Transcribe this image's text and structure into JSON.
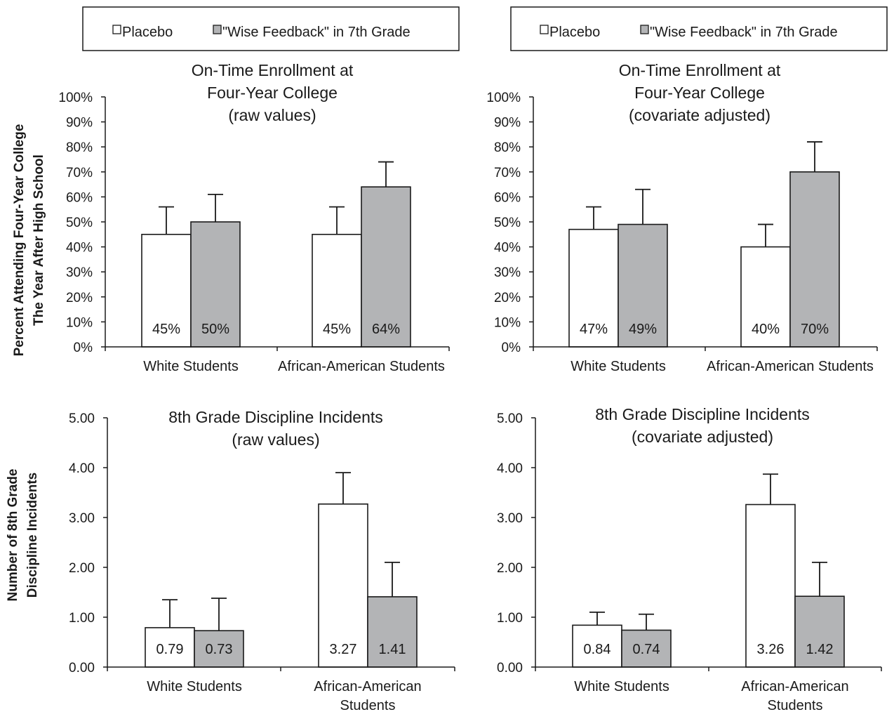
{
  "legend": {
    "placebo_label": "Placebo",
    "treatment_label": "\"Wise Feedback\" in 7th Grade"
  },
  "colors": {
    "placebo": "#ffffff",
    "treatment": "#b3b4b6",
    "ink": "#1a1a1a"
  },
  "row_labels": {
    "top_line1": "Percent Attending Four-Year College",
    "top_line2": "The Year After High School",
    "bottom_line1": "Number of 8th Grade",
    "bottom_line2": "Discipline Incidents"
  },
  "chart_data": [
    {
      "type": "bar",
      "title": [
        "On-Time Enrollment at",
        "Four-Year College",
        "(raw values)"
      ],
      "categories": [
        [
          "White Students"
        ],
        [
          "African-American Students"
        ]
      ],
      "series": [
        {
          "name": "Placebo",
          "values": [
            45,
            45
          ],
          "labels": [
            "45%",
            "45%"
          ],
          "error_upper": [
            56,
            56
          ]
        },
        {
          "name": "\"Wise Feedback\" in 7th Grade",
          "values": [
            50,
            64
          ],
          "labels": [
            "50%",
            "64%"
          ],
          "error_upper": [
            61,
            74
          ]
        }
      ],
      "ylim": [
        0,
        100
      ],
      "ytick_values": [
        0,
        10,
        20,
        30,
        40,
        50,
        60,
        70,
        80,
        90,
        100
      ],
      "ytick_labels": [
        "0%",
        "10%",
        "20%",
        "30%",
        "40%",
        "50%",
        "60%",
        "70%",
        "80%",
        "90%",
        "100%"
      ],
      "legend": "top"
    },
    {
      "type": "bar",
      "title": [
        "On-Time Enrollment at",
        "Four-Year College",
        "(covariate adjusted)"
      ],
      "categories": [
        [
          "White Students"
        ],
        [
          "African-American Students"
        ]
      ],
      "series": [
        {
          "name": "Placebo",
          "values": [
            47,
            40
          ],
          "labels": [
            "47%",
            "40%"
          ],
          "error_upper": [
            56,
            49
          ]
        },
        {
          "name": "\"Wise Feedback\" in 7th Grade",
          "values": [
            49,
            70
          ],
          "labels": [
            "49%",
            "70%"
          ],
          "error_upper": [
            63,
            82
          ]
        }
      ],
      "ylim": [
        0,
        100
      ],
      "ytick_values": [
        0,
        10,
        20,
        30,
        40,
        50,
        60,
        70,
        80,
        90,
        100
      ],
      "ytick_labels": [
        "0%",
        "10%",
        "20%",
        "30%",
        "40%",
        "50%",
        "60%",
        "70%",
        "80%",
        "90%",
        "100%"
      ],
      "legend": "top"
    },
    {
      "type": "bar",
      "title": [
        "8th Grade Discipline Incidents",
        "(raw values)"
      ],
      "categories": [
        [
          "White Students"
        ],
        [
          "African-American",
          "Students"
        ]
      ],
      "series": [
        {
          "name": "Placebo",
          "values": [
            0.79,
            3.27
          ],
          "labels": [
            "0.79",
            "3.27"
          ],
          "error_upper": [
            1.35,
            3.9
          ]
        },
        {
          "name": "\"Wise Feedback\" in 7th Grade",
          "values": [
            0.73,
            1.41
          ],
          "labels": [
            "0.73",
            "1.41"
          ],
          "error_upper": [
            1.38,
            2.1
          ]
        }
      ],
      "ylim": [
        0,
        5
      ],
      "ytick_values": [
        0,
        1,
        2,
        3,
        4,
        5
      ],
      "ytick_labels": [
        "0.00",
        "1.00",
        "2.00",
        "3.00",
        "4.00",
        "5.00"
      ]
    },
    {
      "type": "bar",
      "title": [
        "8th Grade Discipline Incidents",
        "(covariate adjusted)"
      ],
      "categories": [
        [
          "White Students"
        ],
        [
          "African-American",
          "Students"
        ]
      ],
      "series": [
        {
          "name": "Placebo",
          "values": [
            0.84,
            3.26
          ],
          "labels": [
            "0.84",
            "3.26"
          ],
          "error_upper": [
            1.1,
            3.87
          ]
        },
        {
          "name": "\"Wise Feedback\" in 7th Grade",
          "values": [
            0.74,
            1.42
          ],
          "labels": [
            "0.74",
            "1.42"
          ],
          "error_upper": [
            1.06,
            2.1
          ]
        }
      ],
      "ylim": [
        0,
        5
      ],
      "ytick_values": [
        0,
        1,
        2,
        3,
        4,
        5
      ],
      "ytick_labels": [
        "0.00",
        "1.00",
        "2.00",
        "3.00",
        "4.00",
        "5.00"
      ]
    }
  ]
}
